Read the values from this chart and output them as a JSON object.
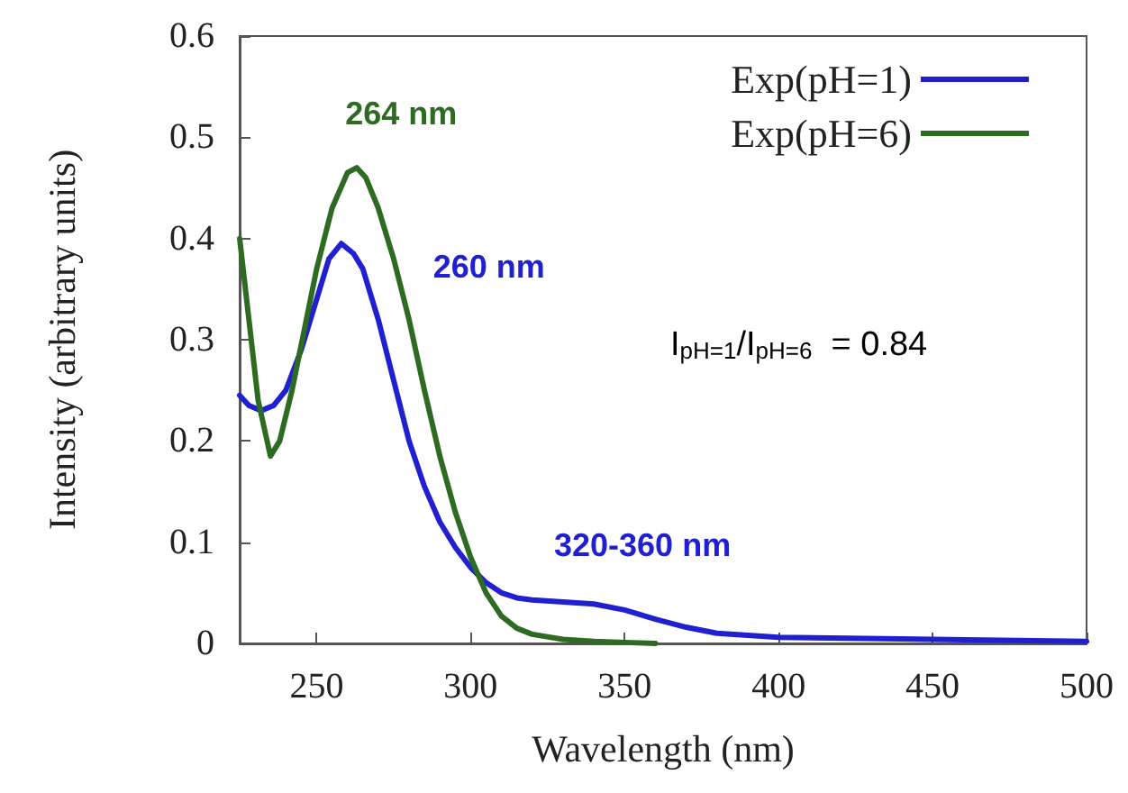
{
  "chart_data": {
    "type": "line",
    "xlabel": "Wavelength (nm)",
    "ylabel": "Intensity (arbitrary units)",
    "xlim": [
      225,
      500
    ],
    "xticks": [
      250,
      300,
      350,
      400,
      450,
      500
    ],
    "ylim": [
      0,
      0.6
    ],
    "yticks": [
      0,
      0.1,
      0.2,
      0.3,
      0.4,
      0.5,
      0.6
    ],
    "grid": false,
    "legend": "top right",
    "marker": "none",
    "line_style": "solid",
    "series": [
      {
        "name": "Exp(pH=1)",
        "color": "#2020d0",
        "x": [
          225,
          228,
          232,
          236,
          240,
          245,
          250,
          254,
          258,
          262,
          265,
          270,
          275,
          280,
          285,
          290,
          295,
          300,
          305,
          310,
          315,
          320,
          330,
          340,
          350,
          360,
          370,
          380,
          400,
          450,
          500
        ],
        "values": [
          0.245,
          0.235,
          0.23,
          0.235,
          0.25,
          0.29,
          0.34,
          0.38,
          0.395,
          0.385,
          0.37,
          0.32,
          0.26,
          0.2,
          0.155,
          0.12,
          0.095,
          0.075,
          0.06,
          0.05,
          0.045,
          0.043,
          0.041,
          0.039,
          0.033,
          0.024,
          0.016,
          0.01,
          0.006,
          0.004,
          0.002
        ]
      },
      {
        "name": "Exp(pH=6)",
        "color": "#2e6b22",
        "x": [
          225,
          228,
          231,
          235,
          238,
          242,
          246,
          250,
          255,
          260,
          263,
          266,
          270,
          275,
          280,
          285,
          290,
          295,
          300,
          305,
          310,
          315,
          320,
          330,
          340,
          350,
          360
        ],
        "values": [
          0.4,
          0.32,
          0.24,
          0.185,
          0.2,
          0.25,
          0.31,
          0.37,
          0.43,
          0.465,
          0.47,
          0.46,
          0.43,
          0.38,
          0.32,
          0.25,
          0.185,
          0.13,
          0.085,
          0.05,
          0.027,
          0.015,
          0.009,
          0.004,
          0.002,
          0.001,
          0
        ]
      }
    ],
    "annotations": [
      {
        "text": "264 nm",
        "x": 264,
        "y": 0.47
      },
      {
        "text": "260 nm",
        "x": 258,
        "y": 0.395
      },
      "I$_{pH=1}$/I$_{pH=6}$  = 0.84",
      {
        "text": "320-360 nm",
        "x": 340,
        "y": 0.04
      }
    ]
  }
}
